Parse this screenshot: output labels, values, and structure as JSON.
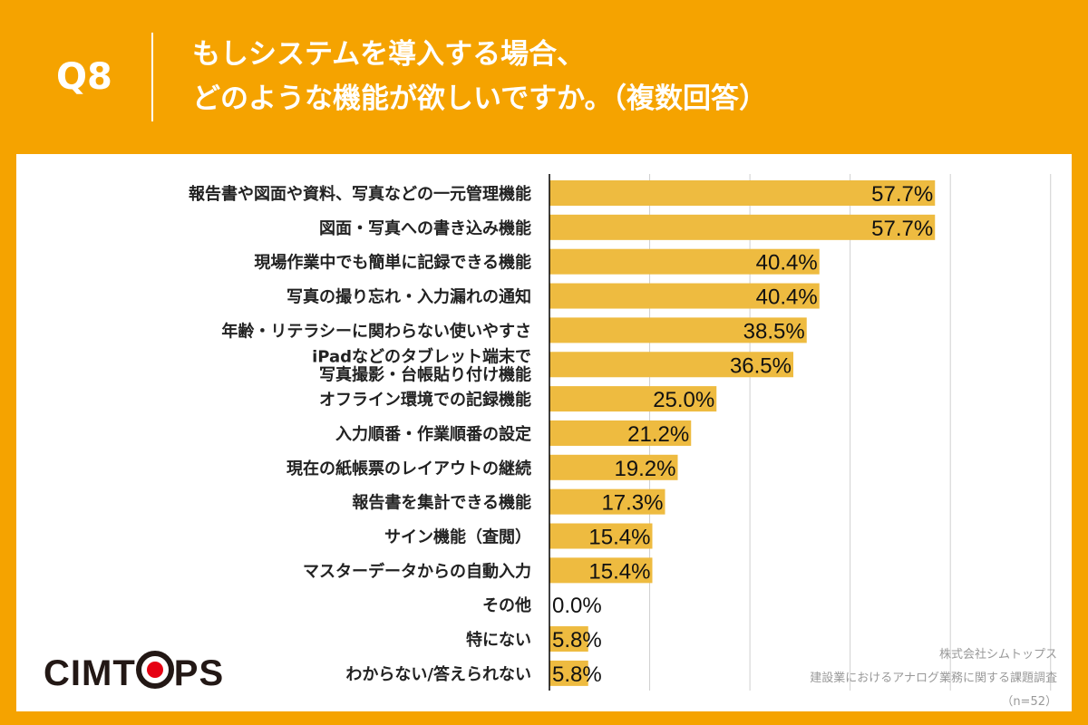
{
  "header": {
    "q_label": "Q8",
    "title_line1": "もしシステムを導入する場合、",
    "title_line2": "どのような機能が欲しいですか。（複数回答）"
  },
  "logo": {
    "text": "CIMTOPS"
  },
  "source": {
    "company": "株式会社シムトップス",
    "survey": "建設業におけるアナログ業務に関する課題調査",
    "n": "（n=52）"
  },
  "colors": {
    "header": "#f5a300",
    "bar": "#eebb40"
  },
  "chart_data": {
    "type": "bar",
    "orientation": "horizontal",
    "xlim": [
      0,
      75
    ],
    "grid": "vertical every 15%",
    "categories": [
      "報告書や図面や資料、写真などの一元管理機能",
      "図面・写真への書き込み機能",
      "現場作業中でも簡単に記録できる機能",
      "写真の撮り忘れ・入力漏れの通知",
      "年齢・リテラシーに関わらない使いやすさ",
      "iPadなどのタブレット端末で\n写真撮影・台帳貼り付け機能",
      "オフライン環境での記録機能",
      "入力順番・作業順番の設定",
      "現在の紙帳票のレイアウトの継続",
      "報告書を集計できる機能",
      "サイン機能（査閲）",
      "マスターデータからの自動入力",
      "その他",
      "特にない",
      "わからない/答えられない"
    ],
    "values": [
      57.7,
      57.7,
      40.4,
      40.4,
      38.5,
      36.5,
      25.0,
      21.2,
      19.2,
      17.3,
      15.4,
      15.4,
      0.0,
      5.8,
      5.8
    ],
    "labels": [
      "57.7%",
      "57.7%",
      "40.4%",
      "40.4%",
      "38.5%",
      "36.5%",
      "25.0%",
      "21.2%",
      "19.2%",
      "17.3%",
      "15.4%",
      "15.4%",
      "0.0%",
      "5.8%",
      "5.8%"
    ]
  }
}
